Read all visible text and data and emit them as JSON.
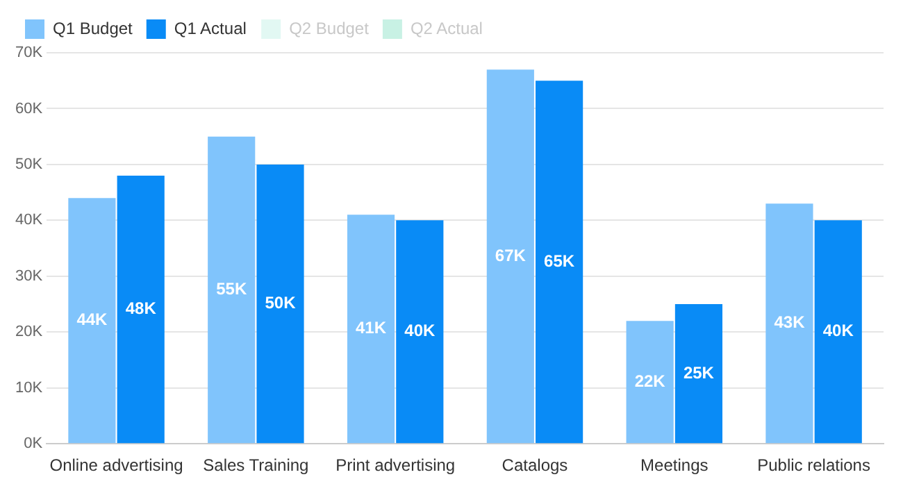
{
  "chart_data": {
    "type": "bar",
    "categories": [
      "Online advertising",
      "Sales Training",
      "Print advertising",
      "Catalogs",
      "Meetings",
      "Public relations"
    ],
    "series": [
      {
        "name": "Q1 Budget",
        "color": "#80c4fc",
        "values": [
          44000,
          55000,
          41000,
          67000,
          22000,
          43000
        ],
        "value_labels": [
          "44K",
          "55K",
          "41K",
          "67K",
          "22K",
          "43K"
        ]
      },
      {
        "name": "Q1 Actual",
        "color": "#098bf6",
        "values": [
          48000,
          50000,
          40000,
          65000,
          25000,
          40000
        ],
        "value_labels": [
          "48K",
          "50K",
          "40K",
          "65K",
          "25K",
          "40K"
        ]
      },
      {
        "name": "Q2 Budget",
        "color": "#e2f8f3",
        "values": [
          null,
          null,
          null,
          null,
          null,
          null
        ]
      },
      {
        "name": "Q2 Actual",
        "color": "#c8f1e4",
        "values": [
          null,
          null,
          null,
          null,
          null,
          null
        ]
      }
    ],
    "ylim": [
      0,
      70000
    ],
    "yticks": [
      {
        "value": 0,
        "label": "0K"
      },
      {
        "value": 10000,
        "label": "10K"
      },
      {
        "value": 20000,
        "label": "20K"
      },
      {
        "value": 30000,
        "label": "30K"
      },
      {
        "value": 40000,
        "label": "40K"
      },
      {
        "value": 50000,
        "label": "50K"
      },
      {
        "value": 60000,
        "label": "60K"
      },
      {
        "value": 70000,
        "label": "70K"
      }
    ],
    "grid": "y",
    "legend": "top left"
  }
}
